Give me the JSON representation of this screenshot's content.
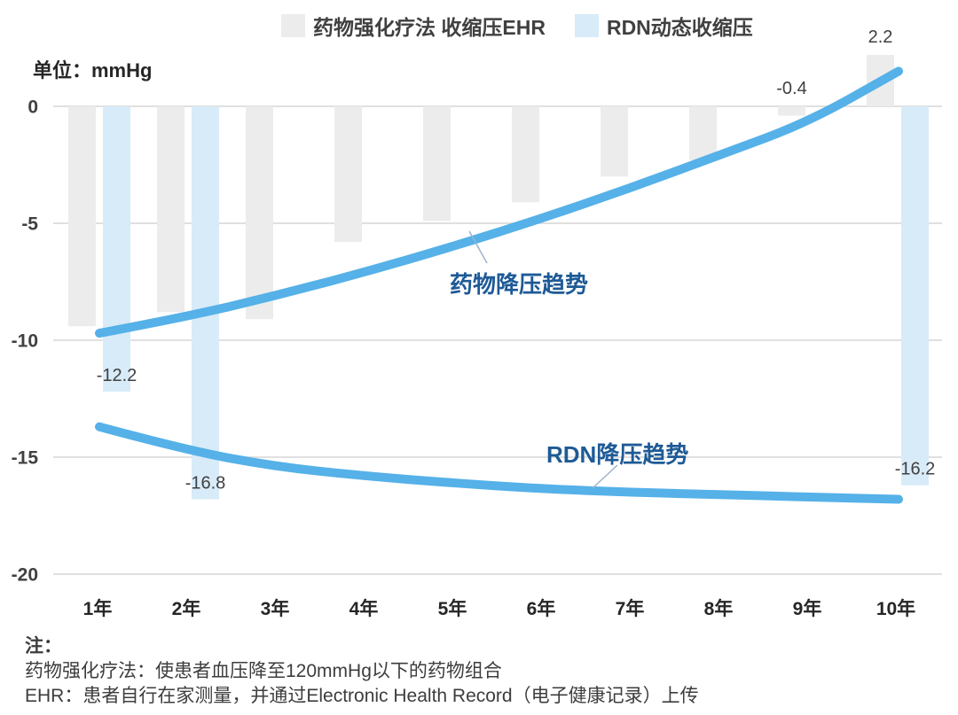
{
  "unit_label": "单位：mmHg",
  "notes": {
    "title": "注：",
    "lines": [
      "药物强化疗法：使患者血压降至120mmHg以下的药物组合",
      "EHR：患者自行在家测量，并通过Electronic Health Record（电子健康记录）上传"
    ]
  },
  "chart_data": {
    "type": "bar",
    "subtype": "grouped bars with two smooth trend lines, negative values below zero baseline",
    "unit": "mmHg",
    "categories": [
      "1年",
      "2年",
      "3年",
      "4年",
      "5年",
      "6年",
      "7年",
      "8年",
      "9年",
      "10年"
    ],
    "y_ticks": [
      0,
      -5,
      -10,
      -15,
      -20
    ],
    "ylim": [
      -20,
      3
    ],
    "grid": true,
    "legend_position": "top",
    "legend": [
      {
        "label": "药物强化疗法 收缩压EHR",
        "color": "#ececec"
      },
      {
        "label": "RDN动态收缩压",
        "color": "#d8ebf8"
      }
    ],
    "series": [
      {
        "name": "药物强化疗法 收缩压EHR",
        "type": "bar",
        "color": "#ececec",
        "values": [
          -9.4,
          -8.8,
          -9.1,
          -5.8,
          -4.9,
          -4.1,
          -3.0,
          -2.3,
          -0.4,
          2.2
        ]
      },
      {
        "name": "RDN动态收缩压",
        "type": "bar",
        "color": "#d8ebf8",
        "values": [
          -12.2,
          -16.8,
          null,
          null,
          null,
          null,
          null,
          null,
          null,
          -16.2
        ]
      },
      {
        "name": "药物降压趋势",
        "type": "line",
        "color": "#55b1e8",
        "values": [
          -9.7,
          -9.0,
          -8.1,
          -7.1,
          -6.0,
          -4.8,
          -3.5,
          -2.1,
          -0.7,
          1.5
        ]
      },
      {
        "name": "RDN降压趋势",
        "type": "line",
        "color": "#55b1e8",
        "values": [
          -13.7,
          -14.7,
          -15.4,
          -15.8,
          -16.1,
          -16.35,
          -16.5,
          -16.6,
          -16.7,
          -16.8
        ]
      }
    ],
    "bar_labels": [
      {
        "series": 0,
        "index": 8,
        "text": "-0.4"
      },
      {
        "series": 0,
        "index": 9,
        "text": "2.2"
      },
      {
        "series": 1,
        "index": 0,
        "text": "-12.2"
      },
      {
        "series": 1,
        "index": 1,
        "text": "-16.8"
      },
      {
        "series": 1,
        "index": 9,
        "text": "-16.2"
      }
    ],
    "trend_labels": [
      {
        "text": "药物降压趋势"
      },
      {
        "text": "RDN降压趋势"
      }
    ],
    "colors": {
      "trend_line": "#55b1e8",
      "trend_label_text": "#1e5a96",
      "gridline": "#d6d6d6",
      "value_label_text": "#404040",
      "axis_text": "#333333"
    }
  }
}
